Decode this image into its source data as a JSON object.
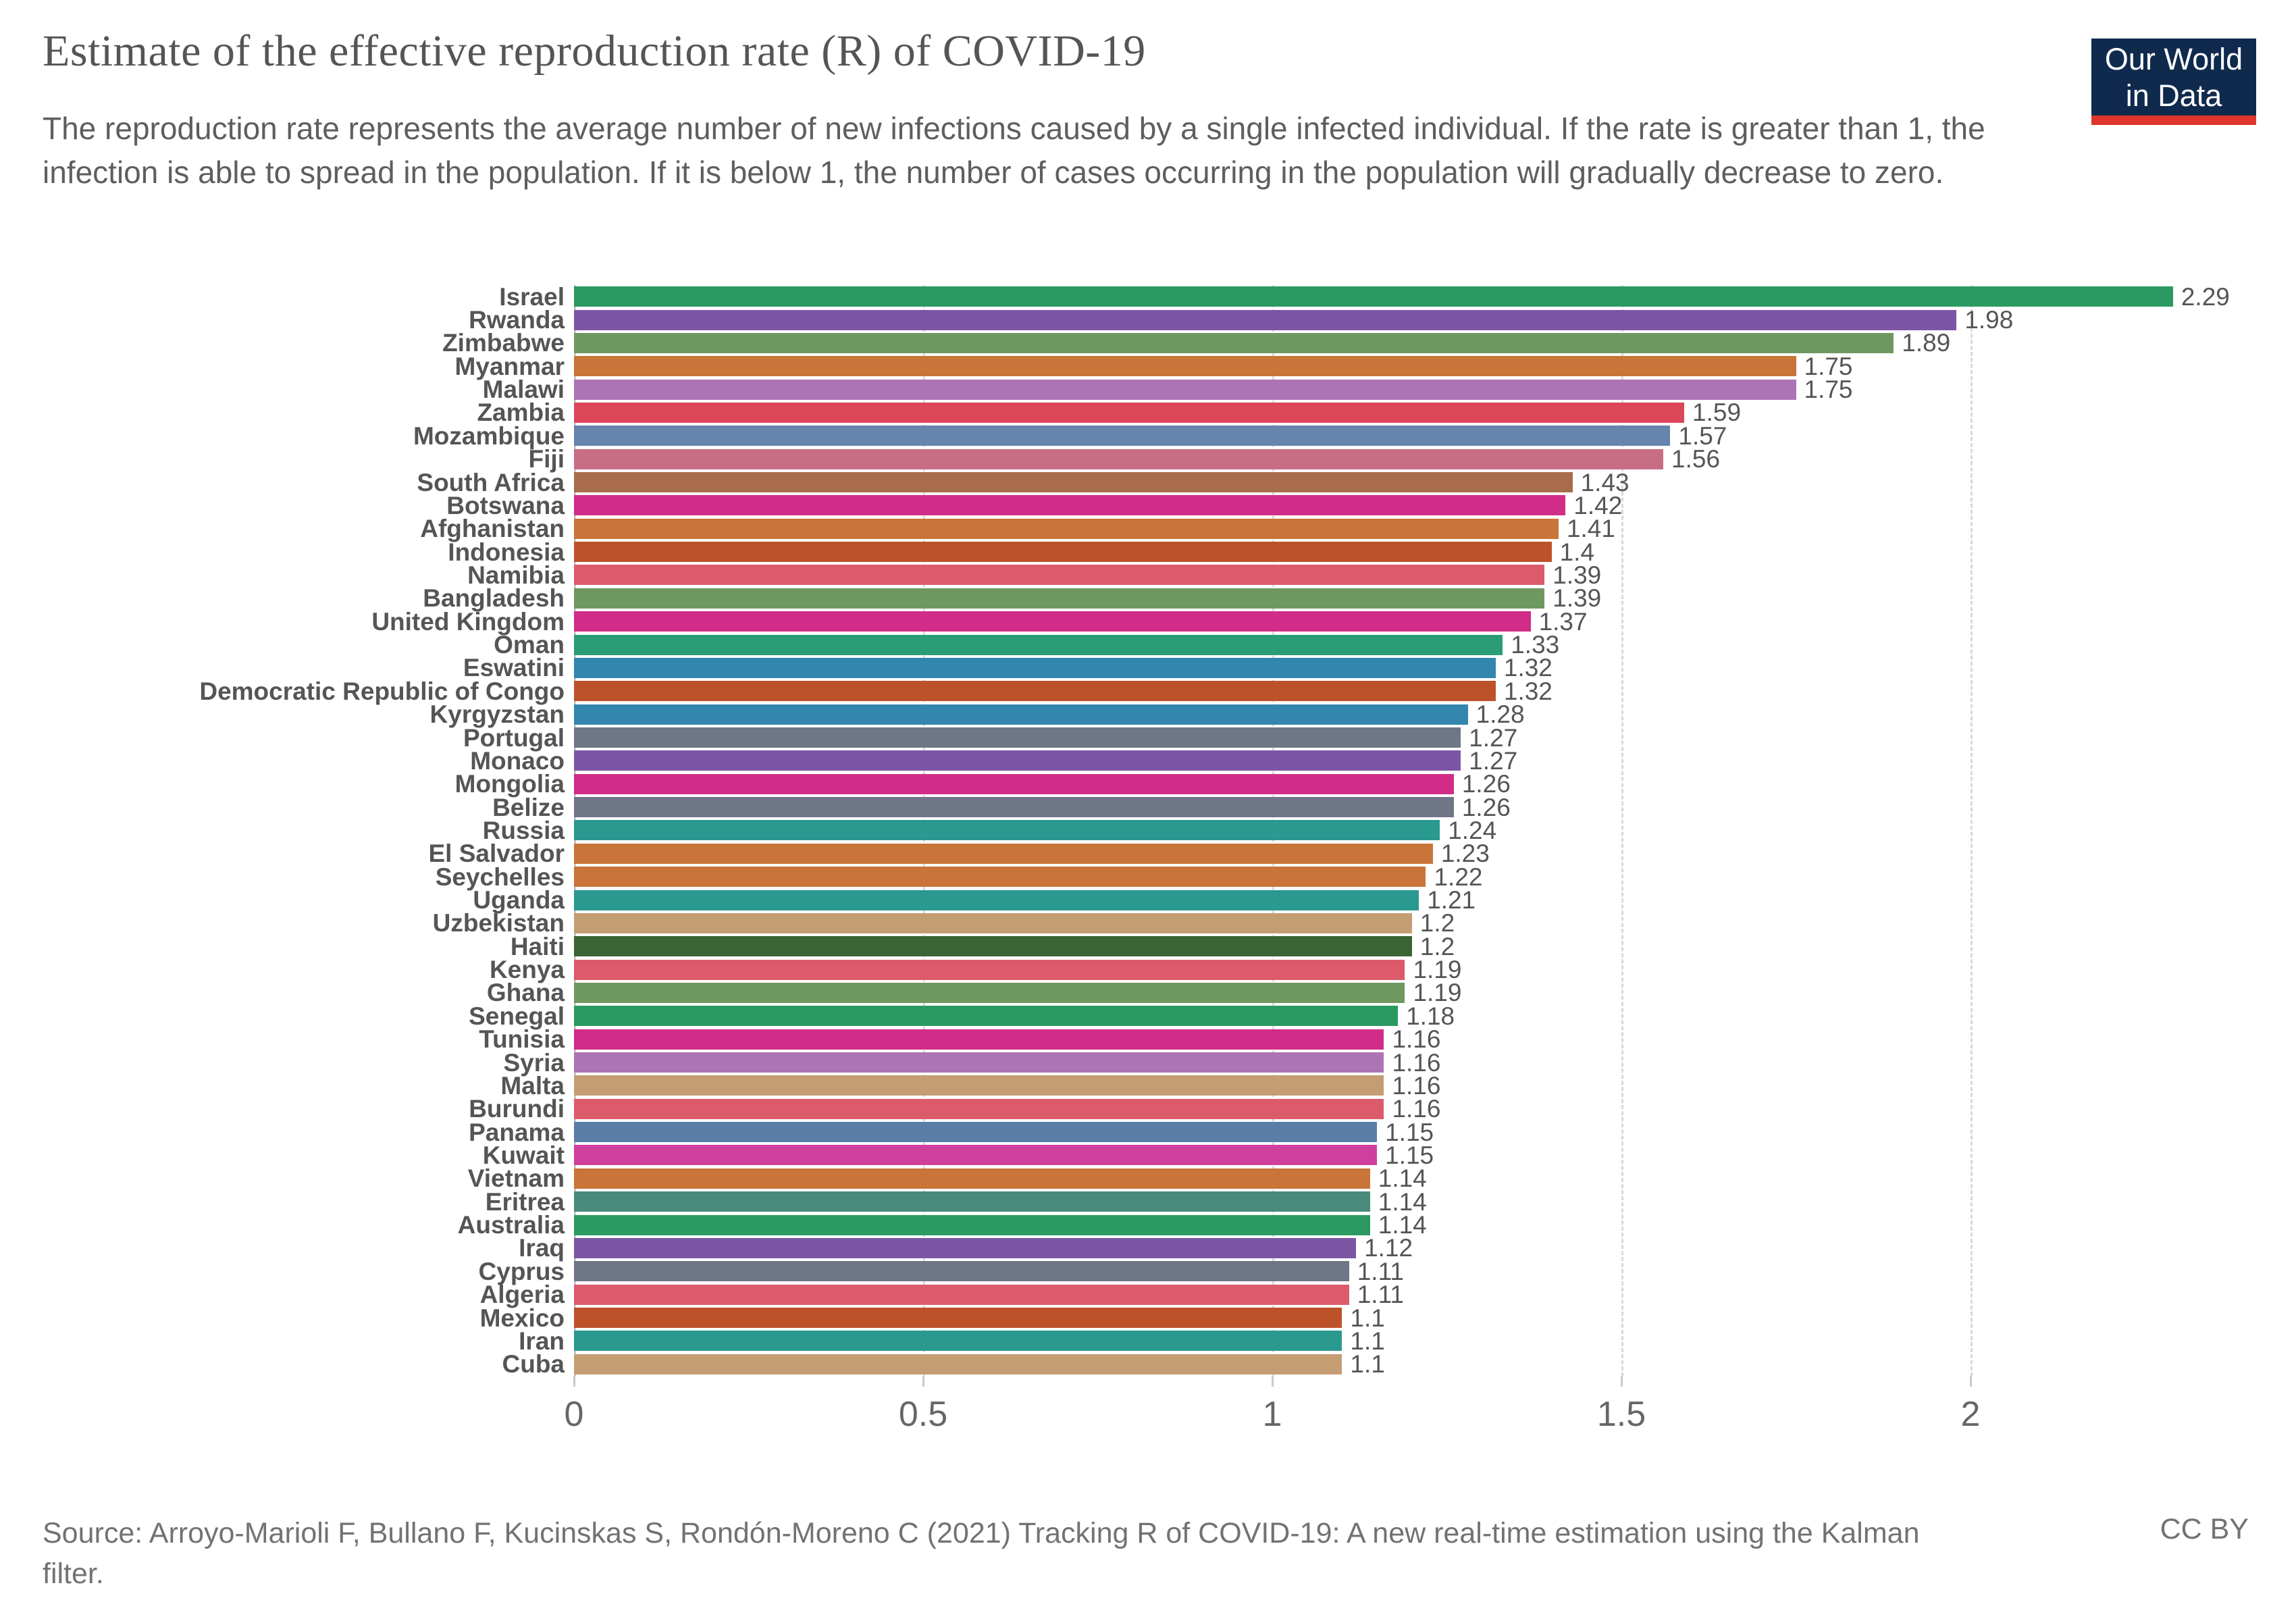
{
  "header": {
    "title": "Estimate of the effective reproduction rate (R) of COVID-19",
    "subtitle": "The reproduction rate represents the average number of new infections caused by a single infected individual. If the rate is greater than 1, the infection is able to spread in the population. If it is below 1, the number of cases occurring in the population will gradually decrease to zero.",
    "logo": {
      "line1": "Our World",
      "line2": "in Data",
      "bg_color": "#102a4e",
      "accent_color": "#e0352b"
    }
  },
  "chart_data": {
    "type": "bar",
    "orientation": "horizontal",
    "title": "Estimate of the effective reproduction rate (R) of COVID-19",
    "xlabel": "",
    "ylabel": "",
    "xlim": [
      0,
      2.4
    ],
    "x_ticks": [
      0,
      0.5,
      1,
      1.5,
      2
    ],
    "x_tick_labels": [
      "0",
      "0.5",
      "1",
      "1.5",
      "2"
    ],
    "grid": "dashed-vertical-gridlines",
    "legend": "none",
    "bar_label_color": "#555555",
    "series": [
      {
        "name": "Israel",
        "value": 2.29,
        "label": "2.29",
        "color": "#2a9a60"
      },
      {
        "name": "Rwanda",
        "value": 1.98,
        "label": "1.98",
        "color": "#7d55a5"
      },
      {
        "name": "Zimbabwe",
        "value": 1.89,
        "label": "1.89",
        "color": "#6f9861"
      },
      {
        "name": "Myanmar",
        "value": 1.75,
        "label": "1.75",
        "color": "#c97438"
      },
      {
        "name": "Malawi",
        "value": 1.75,
        "label": "1.75",
        "color": "#ad74b4"
      },
      {
        "name": "Zambia",
        "value": 1.59,
        "label": "1.59",
        "color": "#dc4658"
      },
      {
        "name": "Mozambique",
        "value": 1.57,
        "label": "1.57",
        "color": "#6684ad"
      },
      {
        "name": "Fiji",
        "value": 1.56,
        "label": "1.56",
        "color": "#c96d84"
      },
      {
        "name": "South Africa",
        "value": 1.43,
        "label": "1.43",
        "color": "#a86c4c"
      },
      {
        "name": "Botswana",
        "value": 1.42,
        "label": "1.42",
        "color": "#d12c87"
      },
      {
        "name": "Afghanistan",
        "value": 1.41,
        "label": "1.41",
        "color": "#c97438"
      },
      {
        "name": "Indonesia",
        "value": 1.4,
        "label": "1.4",
        "color": "#bd512a"
      },
      {
        "name": "Namibia",
        "value": 1.39,
        "label": "1.39",
        "color": "#dc5b6b"
      },
      {
        "name": "Bangladesh",
        "value": 1.39,
        "label": "1.39",
        "color": "#6f9861"
      },
      {
        "name": "United Kingdom",
        "value": 1.37,
        "label": "1.37",
        "color": "#d12c87"
      },
      {
        "name": "Oman",
        "value": 1.33,
        "label": "1.33",
        "color": "#2a9d77"
      },
      {
        "name": "Eswatini",
        "value": 1.32,
        "label": "1.32",
        "color": "#3386ad"
      },
      {
        "name": "Democratic Republic of Congo",
        "value": 1.32,
        "label": "1.32",
        "color": "#bd512a"
      },
      {
        "name": "Kyrgyzstan",
        "value": 1.28,
        "label": "1.28",
        "color": "#3386ad"
      },
      {
        "name": "Portugal",
        "value": 1.27,
        "label": "1.27",
        "color": "#6f7685"
      },
      {
        "name": "Monaco",
        "value": 1.27,
        "label": "1.27",
        "color": "#7d55a5"
      },
      {
        "name": "Mongolia",
        "value": 1.26,
        "label": "1.26",
        "color": "#d12c87"
      },
      {
        "name": "Belize",
        "value": 1.26,
        "label": "1.26",
        "color": "#6f7685"
      },
      {
        "name": "Russia",
        "value": 1.24,
        "label": "1.24",
        "color": "#2a9990"
      },
      {
        "name": "El Salvador",
        "value": 1.23,
        "label": "1.23",
        "color": "#c97438"
      },
      {
        "name": "Seychelles",
        "value": 1.22,
        "label": "1.22",
        "color": "#c97438"
      },
      {
        "name": "Uganda",
        "value": 1.21,
        "label": "1.21",
        "color": "#2a9990"
      },
      {
        "name": "Uzbekistan",
        "value": 1.2,
        "label": "1.2",
        "color": "#c49d73"
      },
      {
        "name": "Haiti",
        "value": 1.2,
        "label": "1.2",
        "color": "#3a6433"
      },
      {
        "name": "Kenya",
        "value": 1.19,
        "label": "1.19",
        "color": "#dc5b6b"
      },
      {
        "name": "Ghana",
        "value": 1.19,
        "label": "1.19",
        "color": "#6f9861"
      },
      {
        "name": "Senegal",
        "value": 1.18,
        "label": "1.18",
        "color": "#2a9a60"
      },
      {
        "name": "Tunisia",
        "value": 1.16,
        "label": "1.16",
        "color": "#d12c87"
      },
      {
        "name": "Syria",
        "value": 1.16,
        "label": "1.16",
        "color": "#ad74b4"
      },
      {
        "name": "Malta",
        "value": 1.16,
        "label": "1.16",
        "color": "#c49d73"
      },
      {
        "name": "Burundi",
        "value": 1.16,
        "label": "1.16",
        "color": "#dc5b6b"
      },
      {
        "name": "Panama",
        "value": 1.15,
        "label": "1.15",
        "color": "#5a7ea7"
      },
      {
        "name": "Kuwait",
        "value": 1.15,
        "label": "1.15",
        "color": "#cf3f9c"
      },
      {
        "name": "Vietnam",
        "value": 1.14,
        "label": "1.14",
        "color": "#c97438"
      },
      {
        "name": "Eritrea",
        "value": 1.14,
        "label": "1.14",
        "color": "#4a8a7d"
      },
      {
        "name": "Australia",
        "value": 1.14,
        "label": "1.14",
        "color": "#2a9a60"
      },
      {
        "name": "Iraq",
        "value": 1.12,
        "label": "1.12",
        "color": "#7d55a5"
      },
      {
        "name": "Cyprus",
        "value": 1.11,
        "label": "1.11",
        "color": "#6f7685"
      },
      {
        "name": "Algeria",
        "value": 1.11,
        "label": "1.11",
        "color": "#dc5b6b"
      },
      {
        "name": "Mexico",
        "value": 1.1,
        "label": "1.1",
        "color": "#bd512a"
      },
      {
        "name": "Iran",
        "value": 1.1,
        "label": "1.1",
        "color": "#2a9990"
      },
      {
        "name": "Cuba",
        "value": 1.1,
        "label": "1.1",
        "color": "#c49d73"
      }
    ]
  },
  "footer": {
    "source": "Source: Arroyo-Marioli F, Bullano F, Kucinskas S, Rondón-Moreno C (2021) Tracking R of COVID-19: A new real-time estimation using the Kalman filter.",
    "license": "CC BY"
  }
}
